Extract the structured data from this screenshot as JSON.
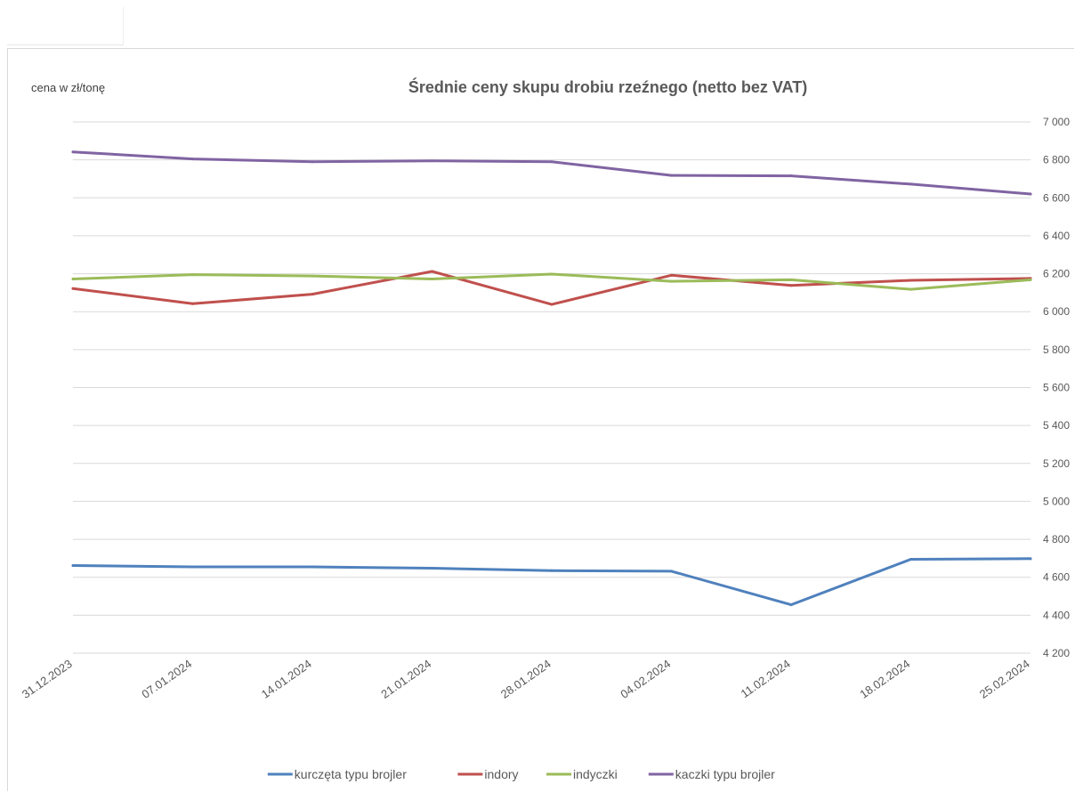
{
  "chart_data": {
    "type": "line",
    "title": "Średnie ceny skupu drobiu rzeźnego (netto bez VAT)",
    "ylabel": "cena w zł/tonę",
    "xlabel": "",
    "ylim": [
      4200,
      7000
    ],
    "y_ticks": [
      "4 200",
      "4 400",
      "4 600",
      "4 800",
      "5 000",
      "5 200",
      "5 400",
      "5 600",
      "5 800",
      "6 000",
      "6 200",
      "6 400",
      "6 600",
      "6 800",
      "7 000"
    ],
    "y_tick_values": [
      4200,
      4400,
      4600,
      4800,
      5000,
      5200,
      5400,
      5600,
      5800,
      6000,
      6200,
      6400,
      6600,
      6800,
      7000
    ],
    "y_axis_side": "right",
    "grid": true,
    "legend_position": "bottom",
    "categories": [
      "31.12.2023",
      "07.01.2024",
      "14.01.2024",
      "21.01.2024",
      "28.01.2024",
      "04.02.2024",
      "11.02.2024",
      "18.02.2024",
      "25.02.2024"
    ],
    "series": [
      {
        "name": "kurczęta typu brojler",
        "color": "#4f81bd",
        "values": [
          4662,
          4655,
          4655,
          4648,
          4635,
          4632,
          4455,
          4695,
          4698
        ]
      },
      {
        "name": "indory",
        "color": "#c0504d",
        "values": [
          6122,
          6042,
          6092,
          6212,
          6038,
          6192,
          6138,
          6165,
          6175
        ]
      },
      {
        "name": "indyczki",
        "color": "#9bbb59",
        "values": [
          6172,
          6195,
          6188,
          6172,
          6198,
          6160,
          6168,
          6118,
          6168
        ]
      },
      {
        "name": "kaczki typu brojler",
        "color": "#8064a2",
        "values": [
          6842,
          6805,
          6790,
          6795,
          6790,
          6718,
          6716,
          6672,
          6620
        ]
      }
    ]
  }
}
